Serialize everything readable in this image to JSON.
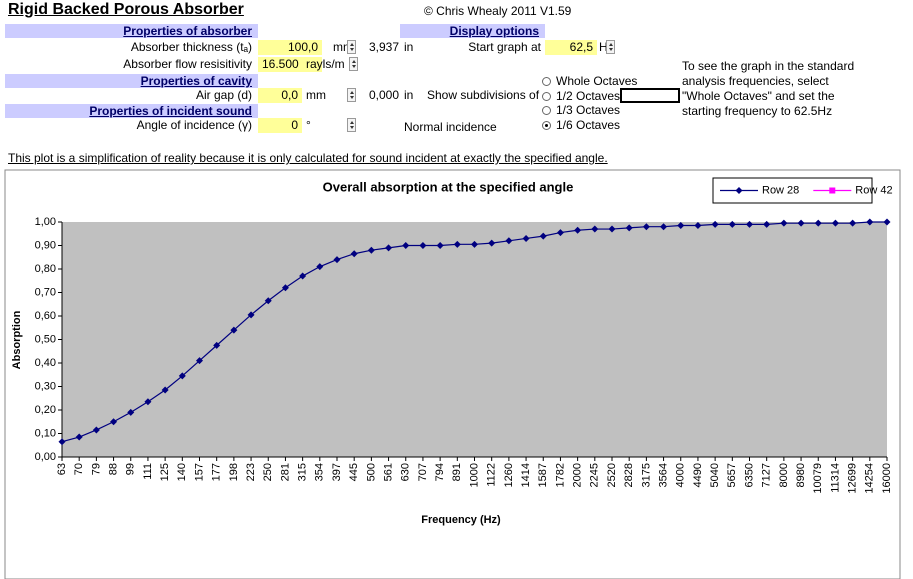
{
  "header": {
    "title": "Rigid Backed Porous Absorber",
    "copyright": "© Chris Whealy 2011  V1.59"
  },
  "absorber": {
    "heading": "Properties of absorber",
    "thickness": {
      "label": "Absorber thickness (tₐ)",
      "value": "100,0",
      "unit": "mm",
      "converted": "3,937",
      "converted_unit": "in"
    },
    "resistivity": {
      "label": "Absorber flow resisitivity",
      "value": "16.500",
      "unit": "rayls/m"
    }
  },
  "cavity": {
    "heading": "Properties of cavity",
    "air_gap": {
      "label": "Air gap (d)",
      "value": "0,0",
      "unit": "mm",
      "converted": "0,000",
      "converted_unit": "in"
    }
  },
  "incident": {
    "heading": "Properties of incident sound",
    "angle": {
      "label": "Angle of incidence (γ)",
      "value": "0",
      "unit": "°",
      "note": "Normal incidence"
    }
  },
  "display": {
    "heading": "Display options",
    "start_label": "Start graph at",
    "start_value": "62,5",
    "start_unit": "Hz",
    "subdivisions_label": "Show subdivisions of",
    "options": [
      "Whole Octaves",
      "1/2 Octaves",
      "1/3 Octaves",
      "1/6 Octaves"
    ],
    "selected": 3
  },
  "note": [
    "To see the graph in the standard",
    "analysis frequencies, select",
    "\"Whole Octaves\" and set the",
    "starting frequency to 62.5Hz"
  ],
  "disclaimer": "This plot is a simplification of reality because it is only calculated for sound incident at exactly the specified angle.",
  "chart_data": {
    "type": "line",
    "title": "Overall absorption at the specified angle",
    "x_label": "Frequency (Hz)",
    "y_label": "Absorption",
    "categories": [
      "63",
      "70",
      "79",
      "88",
      "99",
      "111",
      "125",
      "140",
      "157",
      "177",
      "198",
      "223",
      "250",
      "281",
      "315",
      "354",
      "397",
      "445",
      "500",
      "561",
      "630",
      "707",
      "794",
      "891",
      "1000",
      "1122",
      "1260",
      "1414",
      "1587",
      "1782",
      "2000",
      "2245",
      "2520",
      "2828",
      "3175",
      "3564",
      "4000",
      "4490",
      "5040",
      "5657",
      "6350",
      "7127",
      "8000",
      "8980",
      "10079",
      "11314",
      "12699",
      "14254",
      "16000"
    ],
    "series": [
      {
        "name": "Row 28",
        "color": "#000080",
        "marker": "diamond",
        "values": [
          0.065,
          0.085,
          0.115,
          0.15,
          0.19,
          0.235,
          0.285,
          0.345,
          0.41,
          0.475,
          0.54,
          0.605,
          0.665,
          0.72,
          0.77,
          0.81,
          0.84,
          0.865,
          0.88,
          0.89,
          0.9,
          0.9,
          0.9,
          0.905,
          0.905,
          0.91,
          0.92,
          0.93,
          0.94,
          0.955,
          0.965,
          0.97,
          0.97,
          0.975,
          0.98,
          0.98,
          0.985,
          0.985,
          0.99,
          0.99,
          0.99,
          0.99,
          0.995,
          0.995,
          0.995,
          0.995,
          0.995,
          1.0,
          1.0
        ]
      },
      {
        "name": "Row 42",
        "color": "#ff00ff",
        "marker": "square",
        "values": [
          null,
          null,
          null,
          null,
          null,
          null,
          null,
          null,
          null,
          null,
          null,
          null,
          null,
          null,
          null,
          null,
          null,
          null,
          null,
          null,
          null,
          null,
          null,
          null,
          null,
          null,
          null,
          null,
          null,
          null,
          null,
          null,
          null,
          null,
          null,
          null,
          null,
          null,
          null,
          null,
          null,
          null,
          null,
          null,
          null,
          null,
          null,
          null,
          null
        ]
      }
    ],
    "ylim": [
      0,
      1
    ],
    "yticks": [
      {
        "value": 0,
        "label": "0,00"
      },
      {
        "value": 0.1,
        "label": "0,10"
      },
      {
        "value": 0.2,
        "label": "0,20"
      },
      {
        "value": 0.3,
        "label": "0,30"
      },
      {
        "value": 0.4,
        "label": "0,40"
      },
      {
        "value": 0.5,
        "label": "0,50"
      },
      {
        "value": 0.6,
        "label": "0,60"
      },
      {
        "value": 0.7,
        "label": "0,70"
      },
      {
        "value": 0.8,
        "label": "0,80"
      },
      {
        "value": 0.9,
        "label": "0,90"
      },
      {
        "value": 1,
        "label": "1,00"
      }
    ],
    "grid": false,
    "legend": "top-right",
    "plot_background": "#c0c0c0"
  }
}
